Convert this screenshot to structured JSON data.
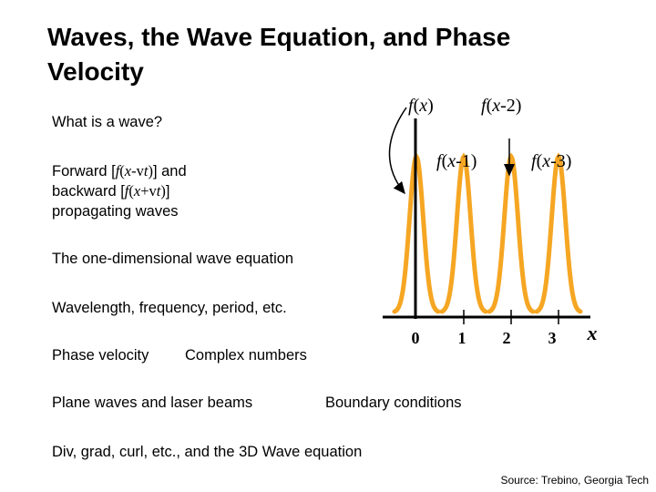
{
  "title": "Waves, the Wave Equation, and Phase Velocity",
  "bullets": {
    "what_is_wave": "What is a wave?",
    "propagating": {
      "prefix": "Forward [",
      "fwd_f": "f",
      "fwd_open": "(",
      "fwd_x": "x",
      "fwd_mid": "-v",
      "fwd_t": "t",
      "fwd_close": ")",
      "and": "] and",
      "backward": "backward [",
      "bwd_f": "f",
      "bwd_open": "(",
      "bwd_x": "x",
      "bwd_mid": "+v",
      "bwd_t": "t",
      "bwd_close": ")",
      "bwd_end": "]",
      "line3": "propagating waves"
    },
    "wave_equation": "The one-dimensional wave equation",
    "wavelength": "Wavelength, frequency, period, etc.",
    "phase_velocity": "Phase velocity",
    "complex_numbers": "Complex numbers",
    "plane_waves": "Plane waves and laser beams",
    "boundary": "Boundary conditions",
    "div_grad": "Div, grad, curl, etc., and the 3D Wave equation"
  },
  "figure": {
    "labels": {
      "fx": "f(x)",
      "fx2": "f(x-2)",
      "fx1": "f(x-1)",
      "fx3": "f(x-3)"
    },
    "ticks": [
      "0",
      "1",
      "2",
      "3"
    ],
    "axis_label": "x",
    "pulse_color": "#F5A623",
    "pulse_positions": [
      0,
      1,
      2,
      3
    ]
  },
  "source": "Source: Trebino, Georgia Tech"
}
